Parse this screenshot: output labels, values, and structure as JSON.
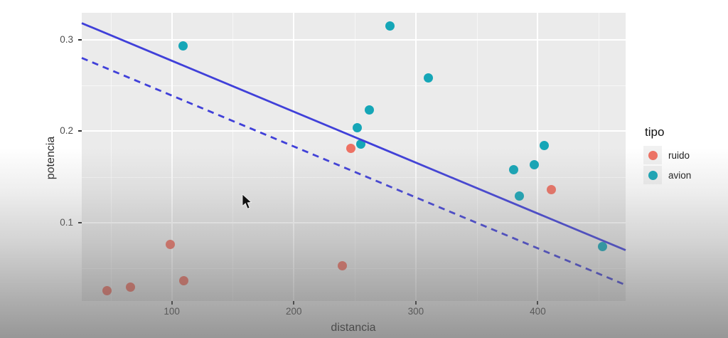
{
  "chart_data": {
    "type": "scatter",
    "title": "",
    "xlabel": "distancia",
    "ylabel": "potencia",
    "legend_title": "tipo",
    "legend_position": "right",
    "grid": true,
    "panel_background": "#ebebeb",
    "xlim": [
      26.2,
      472.0
    ],
    "ylim": [
      0.0145,
      0.3293
    ],
    "x_ticks": [
      100,
      200,
      300,
      400
    ],
    "x_tick_labels": [
      "100",
      "200",
      "300",
      "400"
    ],
    "y_ticks": [
      0.1,
      0.2,
      0.3
    ],
    "y_tick_labels": [
      "0.1",
      "0.2",
      "0.3"
    ],
    "x_minor_ticks": [
      50,
      150,
      250,
      350,
      450
    ],
    "y_minor_ticks": [
      0.05,
      0.15,
      0.25
    ],
    "series": [
      {
        "name": "ruido",
        "color": "#ee7163",
        "points": [
          [
            47,
            0.026
          ],
          [
            66,
            0.03
          ],
          [
            99,
            0.076
          ],
          [
            110,
            0.037
          ],
          [
            240,
            0.053
          ],
          [
            247,
            0.181
          ],
          [
            411,
            0.136
          ]
        ]
      },
      {
        "name": "avion",
        "color": "#15a6b7",
        "points": [
          [
            109,
            0.293
          ],
          [
            252,
            0.204
          ],
          [
            255,
            0.186
          ],
          [
            262,
            0.223
          ],
          [
            279,
            0.315
          ],
          [
            310,
            0.258
          ],
          [
            380,
            0.158
          ],
          [
            385,
            0.129
          ],
          [
            397,
            0.163
          ],
          [
            405,
            0.184
          ],
          [
            453,
            0.074
          ]
        ]
      }
    ],
    "lines": [
      {
        "name": "fit-line-solid",
        "style": "solid",
        "color": "#4040d9",
        "from": [
          26.2,
          0.318
        ],
        "to": [
          472.0,
          0.07
        ]
      },
      {
        "name": "fit-line-dashed",
        "style": "dashed",
        "color": "#4040d9",
        "from": [
          26.2,
          0.28
        ],
        "to": [
          472.0,
          0.032
        ]
      }
    ]
  }
}
